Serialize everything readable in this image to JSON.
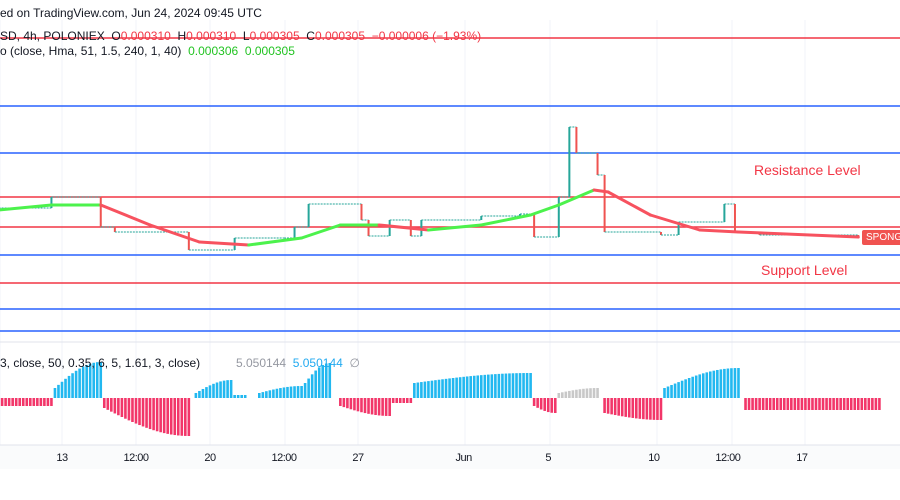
{
  "header": {
    "published": "ed on TradingView.com, Jun 24, 2024 09:45 UTC",
    "symbol": "SD, 4h, POLONIEX",
    "o_label": "O",
    "o": "0.000310",
    "h_label": "H",
    "h": "0.000310",
    "l_label": "L",
    "l": "0.000305",
    "c_label": "C",
    "c": "0.000305",
    "change": "−0.000006 (−1.93%)",
    "indicator": "o (close, Hma, 51, 1.5, 240, 1, 40)",
    "ind_v1": "0.000306",
    "ind_v2": "0.000305"
  },
  "oscillator": {
    "params": "3, close, 50, 0.35, 6, 5, 1.61, 3, close)",
    "v1": "5.050144",
    "v2": "5.050144",
    "hide_icon": "∅"
  },
  "labels": {
    "resistance": "Resistance Level",
    "support": "Support Level",
    "price_badge": "SPONG"
  },
  "chart_data": {
    "type": "line",
    "x_ticks": [
      {
        "label": "13",
        "date": "2024-05-13T00:00"
      },
      {
        "label": "12:00",
        "date": "2024-05-16T12:00"
      },
      {
        "label": "20",
        "date": "2024-05-20T00:00"
      },
      {
        "label": "12:00",
        "date": "2024-05-23T12:00"
      },
      {
        "label": "27",
        "date": "2024-05-27T00:00"
      },
      {
        "label": "Jun",
        "date": "2024-06-01T00:00"
      },
      {
        "label": "5",
        "date": "2024-06-05T00:00"
      },
      {
        "label": "10",
        "date": "2024-06-10T00:00"
      },
      {
        "label": "12:00",
        "date": "2024-06-13T12:00"
      },
      {
        "label": "17",
        "date": "2024-06-17T00:00"
      }
    ],
    "levels": [
      {
        "price": 0.0003247,
        "color": "#f23645"
      },
      {
        "price": 0.0003179,
        "color": "#2962ff"
      },
      {
        "price": 0.0003132,
        "color": "#2962ff"
      },
      {
        "price": 0.0003088,
        "color": "#f23645"
      },
      {
        "price": 0.0003058,
        "color": "#f23645"
      },
      {
        "price": 0.000303,
        "color": "#2962ff"
      },
      {
        "price": 0.0003002,
        "color": "#f23645"
      },
      {
        "price": 0.0002976,
        "color": "#2962ff"
      },
      {
        "price": 0.0002954,
        "color": "#2962ff"
      }
    ],
    "price_steps": [
      [
        "2024-05-10T00:00",
        0.0003077
      ],
      [
        "2024-05-12T12:00",
        0.0003088
      ],
      [
        "2024-05-14T20:00",
        0.0003058
      ],
      [
        "2024-05-15T12:00",
        0.0003053
      ],
      [
        "2024-05-18T04:00",
        0.0003053
      ],
      [
        "2024-05-19T00:00",
        0.0003035
      ],
      [
        "2024-05-21T04:00",
        0.0003047
      ],
      [
        "2024-05-23T12:00",
        0.0003047
      ],
      [
        "2024-05-24T00:00",
        0.0003058
      ],
      [
        "2024-05-24T16:00",
        0.0003081
      ],
      [
        "2024-05-25T16:00",
        0.0003081
      ],
      [
        "2024-05-27T04:00",
        0.0003065
      ],
      [
        "2024-05-27T12:00",
        0.0003049
      ],
      [
        "2024-05-28T12:00",
        0.0003065
      ],
      [
        "2024-05-29T12:00",
        0.0003049
      ],
      [
        "2024-05-30T00:00",
        0.0003065
      ],
      [
        "2024-06-01T20:00",
        0.0003069
      ],
      [
        "2024-06-03T16:00",
        0.0003071
      ],
      [
        "2024-06-04T08:00",
        0.0003048
      ],
      [
        "2024-06-05T12:00",
        0.0003088
      ],
      [
        "2024-06-06T00:00",
        0.0003158
      ],
      [
        "2024-06-06T08:00",
        0.0003132
      ],
      [
        "2024-06-07T08:00",
        0.000311
      ],
      [
        "2024-06-07T16:00",
        0.0003053
      ],
      [
        "2024-06-10T08:00",
        0.000305
      ],
      [
        "2024-06-11T04:00",
        0.0003063
      ],
      [
        "2024-06-13T08:00",
        0.0003081
      ],
      [
        "2024-06-13T20:00",
        0.0003053
      ],
      [
        "2024-06-15T00:00",
        0.000305
      ],
      [
        "2024-06-19T16:00",
        0.0003048
      ]
    ],
    "hma": [
      [
        "2024-05-10T00:00",
        0.0003075
      ],
      [
        "2024-05-12T12:00",
        0.000308
      ],
      [
        "2024-05-14T20:00",
        0.000308
      ],
      [
        "2024-05-17T04:00",
        0.000306
      ],
      [
        "2024-05-19T12:00",
        0.0003043
      ],
      [
        "2024-05-21T20:00",
        0.000304
      ],
      [
        "2024-05-24T08:00",
        0.0003047
      ],
      [
        "2024-05-26T04:00",
        0.000306
      ],
      [
        "2024-05-28T00:00",
        0.000306
      ],
      [
        "2024-05-30T08:00",
        0.0003055
      ],
      [
        "2024-06-01T20:00",
        0.000306
      ],
      [
        "2024-06-04T04:00",
        0.000307
      ],
      [
        "2024-06-05T12:00",
        0.000308
      ],
      [
        "2024-06-07T04:00",
        0.0003095
      ],
      [
        "2024-06-07T20:00",
        0.0003093
      ],
      [
        "2024-06-09T20:00",
        0.000307
      ],
      [
        "2024-06-12T04:00",
        0.0003055
      ],
      [
        "2024-06-14T00:00",
        0.0003053
      ],
      [
        "2024-06-19T16:00",
        0.0003048
      ]
    ],
    "histogram_segments": [
      {
        "start": "2024-05-10T00:00",
        "end": "2024-05-12T12:00",
        "from": -8,
        "to": -8,
        "color": "#f23669"
      },
      {
        "start": "2024-05-12T16:00",
        "end": "2024-05-14T20:00",
        "from": 10,
        "to": 36,
        "color": "#22b8f0"
      },
      {
        "start": "2024-05-15T00:00",
        "end": "2024-05-19T00:00",
        "from": -10,
        "to": -38,
        "color": "#f23669"
      },
      {
        "start": "2024-05-19T08:00",
        "end": "2024-05-21T00:00",
        "from": 5,
        "to": 18,
        "color": "#22b8f0"
      },
      {
        "start": "2024-05-21T04:00",
        "end": "2024-05-21T16:00",
        "from": 3,
        "to": 3,
        "color": "#22b8f0"
      },
      {
        "start": "2024-05-22T08:00",
        "end": "2024-05-24T08:00",
        "from": 5,
        "to": 12,
        "color": "#22b8f0"
      },
      {
        "start": "2024-05-24T12:00",
        "end": "2024-05-25T16:00",
        "from": 15,
        "to": 35,
        "color": "#22b8f0"
      },
      {
        "start": "2024-05-26T04:00",
        "end": "2024-05-28T12:00",
        "from": -8,
        "to": -18,
        "color": "#f23669"
      },
      {
        "start": "2024-05-28T16:00",
        "end": "2024-05-29T12:00",
        "from": -5,
        "to": -5,
        "color": "#f23669"
      },
      {
        "start": "2024-05-29T16:00",
        "end": "2024-06-04T04:00",
        "from": 15,
        "to": 25,
        "color": "#22b8f0"
      },
      {
        "start": "2024-06-04T08:00",
        "end": "2024-06-05T08:00",
        "from": -8,
        "to": -15,
        "color": "#f23669"
      },
      {
        "start": "2024-06-05T12:00",
        "end": "2024-06-07T08:00",
        "from": 5,
        "to": 10,
        "color": "#c8c8c8"
      },
      {
        "start": "2024-06-07T16:00",
        "end": "2024-06-10T08:00",
        "from": -15,
        "to": -22,
        "color": "#f23669"
      },
      {
        "start": "2024-06-10T12:00",
        "end": "2024-06-14T00:00",
        "from": 10,
        "to": 30,
        "color": "#22b8f0"
      },
      {
        "start": "2024-06-14T08:00",
        "end": "2024-06-20T16:00",
        "from": -12,
        "to": -12,
        "color": "#f23669"
      }
    ],
    "colors": {
      "up": "#4cf24c",
      "down": "#f7525f",
      "step": "#26a69a"
    }
  }
}
